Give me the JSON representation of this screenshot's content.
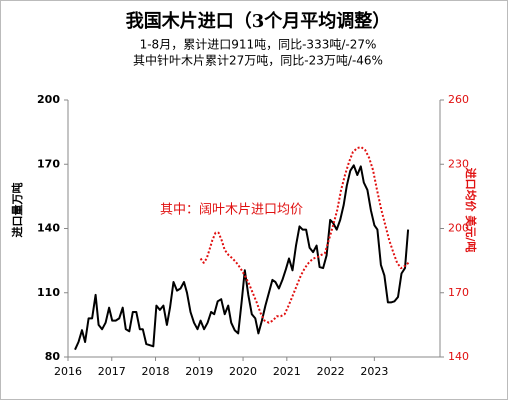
{
  "chart_data": {
    "type": "line",
    "title": "我国木片进口（3个月平均调整）",
    "subtitle": [
      "1-8月，累计进口911吨，同比-333吨/-27%",
      "其中针叶木片累计27万吨，同比-23万吨/-46%"
    ],
    "y_label": "进口量万吨",
    "y2_label": "进口均价 美元/吨",
    "xlim": [
      2016,
      2024.5
    ],
    "xticks": [
      2016,
      2017,
      2018,
      2019,
      2020,
      2021,
      2022,
      2023
    ],
    "ylim": [
      80,
      200
    ],
    "yticks": [
      80,
      110,
      140,
      170,
      200
    ],
    "y2lim": [
      140,
      260
    ],
    "y2ticks": [
      140,
      170,
      200,
      230,
      260
    ],
    "series": [
      {
        "color": "#000000",
        "x": [
          2016.16,
          2016.24,
          2016.32,
          2016.39,
          2016.47,
          2016.55,
          2016.63,
          2016.7,
          2016.78,
          2016.86,
          2016.94,
          2017.01,
          2017.09,
          2017.17,
          2017.25,
          2017.32,
          2017.4,
          2017.48,
          2017.56,
          2017.64,
          2017.71,
          2017.79,
          2017.87,
          2017.95,
          2018.02,
          2018.1,
          2018.18,
          2018.26,
          2018.33,
          2018.41,
          2018.49,
          2018.57,
          2018.65,
          2018.72,
          2018.8,
          2018.88,
          2018.96,
          2019.03,
          2019.11,
          2019.19,
          2019.27,
          2019.34,
          2019.42,
          2019.5,
          2019.58,
          2019.66,
          2019.73,
          2019.81,
          2019.89,
          2019.97,
          2020.04,
          2020.12,
          2020.2,
          2020.28,
          2020.35,
          2020.43,
          2020.51,
          2020.59,
          2020.67,
          2020.74,
          2020.82,
          2020.9,
          2020.98,
          2021.05,
          2021.13,
          2021.21,
          2021.29,
          2021.36,
          2021.44,
          2021.52,
          2021.6,
          2021.68,
          2021.75,
          2021.83,
          2021.91,
          2021.99,
          2022.06,
          2022.14,
          2022.22,
          2022.3,
          2022.37,
          2022.45,
          2022.53,
          2022.61,
          2022.69,
          2022.76,
          2022.84,
          2022.92,
          2023.0,
          2023.07,
          2023.15,
          2023.23,
          2023.31,
          2023.38,
          2023.46,
          2023.54,
          2023.62,
          2023.7,
          2023.77
        ],
        "values": [
          83.4,
          87,
          92.5,
          87,
          98,
          98,
          109,
          95,
          93,
          96,
          103,
          97,
          97,
          98,
          103,
          93,
          92,
          101,
          101,
          93,
          93,
          86,
          85.5,
          85,
          104,
          102,
          104,
          95,
          103,
          115,
          111,
          112,
          115,
          110,
          101,
          96,
          93,
          97,
          93,
          96,
          101,
          100,
          106,
          107,
          100,
          104,
          96,
          92.5,
          91,
          106,
          120.5,
          109,
          100,
          98,
          91,
          97,
          104,
          110,
          116,
          115,
          112,
          116,
          121,
          126,
          120.5,
          132,
          141,
          139.5,
          139.5,
          131,
          129,
          132,
          122,
          121.5,
          127.5,
          144,
          142.5,
          139.5,
          144,
          151,
          160,
          167,
          169.5,
          165,
          169,
          161.5,
          158,
          148.5,
          141.5,
          139.5,
          123,
          118,
          105.5,
          105.5,
          106,
          108,
          119,
          121.5,
          139.5
        ]
      },
      {
        "name": "其中：阔叶木片进口均价",
        "color": "#e01010",
        "axis": "y2",
        "x": [
          2019.03,
          2019.1,
          2019.17,
          2019.23,
          2019.3,
          2019.37,
          2019.44,
          2019.51,
          2019.58,
          2019.67,
          2019.76,
          2019.85,
          2019.94,
          2020.04,
          2020.13,
          2020.22,
          2020.31,
          2020.4,
          2020.49,
          2020.59,
          2020.68,
          2020.77,
          2020.86,
          2020.95,
          2021.04,
          2021.14,
          2021.23,
          2021.32,
          2021.41,
          2021.5,
          2021.6,
          2021.69,
          2021.78,
          2021.87,
          2021.96,
          2022.06,
          2022.15,
          2022.24,
          2022.33,
          2022.42,
          2022.51,
          2022.61,
          2022.7,
          2022.79,
          2022.88,
          2022.97,
          2023.06,
          2023.16,
          2023.25,
          2023.34,
          2023.43,
          2023.52,
          2023.61,
          2023.71,
          2023.78
        ],
        "values": [
          186,
          184,
          186,
          190,
          194.6,
          198,
          198,
          194.6,
          190,
          187.6,
          186,
          184,
          181.5,
          178,
          174.5,
          170,
          165.6,
          160.5,
          157,
          156,
          157,
          159,
          159,
          160,
          164,
          169,
          173.5,
          178,
          181.5,
          184,
          186,
          186.5,
          187.6,
          188.5,
          194.6,
          201.6,
          208.6,
          218,
          225,
          231,
          235.7,
          237.6,
          238,
          236.6,
          233,
          227.3,
          218,
          208.6,
          201.6,
          194.6,
          189,
          184,
          181.5,
          182.7,
          184
        ]
      }
    ]
  }
}
